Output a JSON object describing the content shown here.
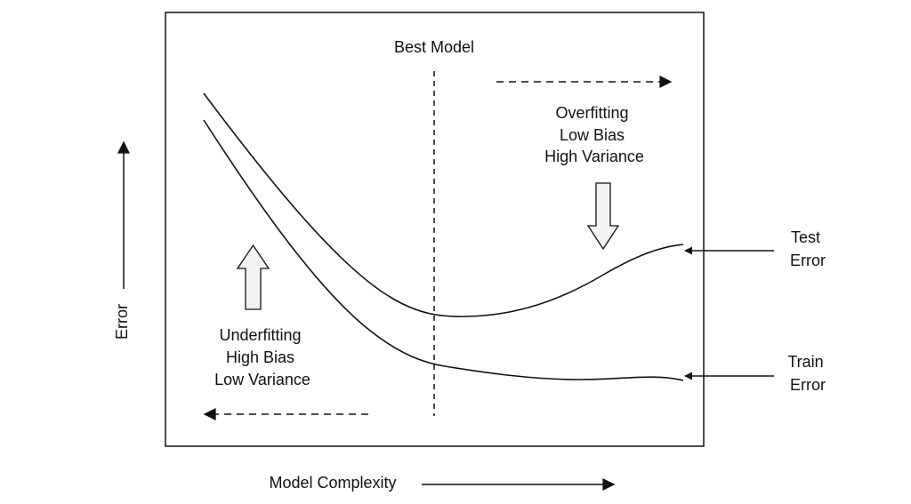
{
  "labels": {
    "best_model": "Best Model",
    "overfitting": [
      "Overfitting",
      "Low Bias",
      "High Variance"
    ],
    "underfitting": [
      "Underfitting",
      "High Bias",
      "Low Variance"
    ],
    "test_error": [
      "Test",
      "Error"
    ],
    "train_error": [
      "Train",
      "Error"
    ],
    "x_axis": "Model Complexity",
    "y_axis": "Error"
  },
  "colors": {
    "stroke": "#111111",
    "arrow_fill": "#f2f2f2",
    "background": "#ffffff"
  }
}
